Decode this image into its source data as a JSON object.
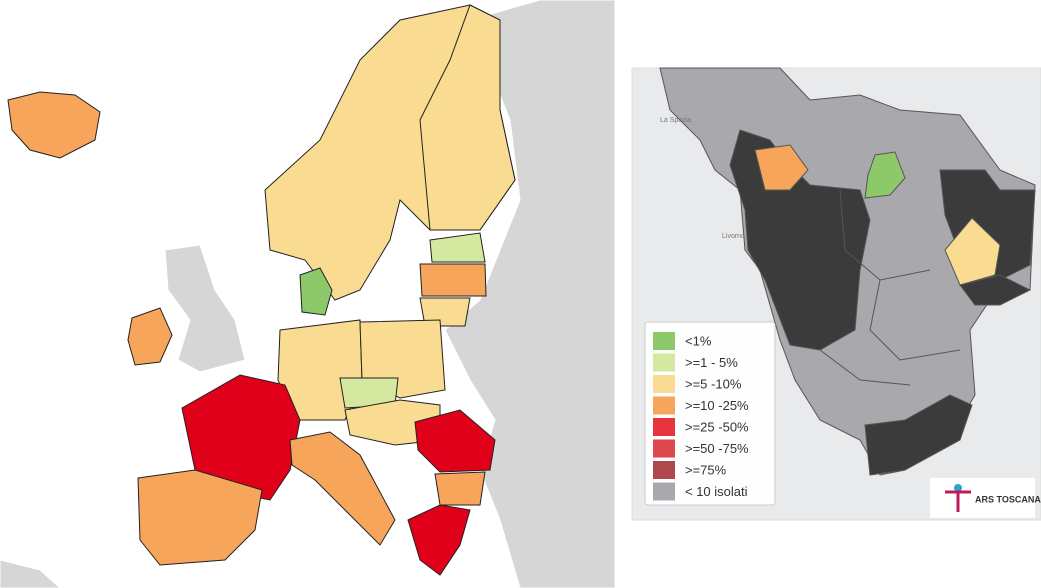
{
  "map_labels": [
    "La Spezia",
    "Livorno"
  ],
  "legend": [
    {
      "label": "<1%",
      "color": "#8dc96a"
    },
    {
      "label": ">=1 - 5%",
      "color": "#d4e8a0"
    },
    {
      "label": ">=5 -10%",
      "color": "#f9dc92"
    },
    {
      "label": ">=10 -25%",
      "color": "#f6a55b"
    },
    {
      "label": ">=25 -50%",
      "color": "#e8343c"
    },
    {
      "label": ">=50 -75%",
      "color": "#e0474c"
    },
    {
      "label": ">=75%",
      "color": "#b0474e"
    },
    {
      "label": "< 10 isolati",
      "color": "#a9a9ad"
    }
  ],
  "logo": "ARS TOSCANA"
}
